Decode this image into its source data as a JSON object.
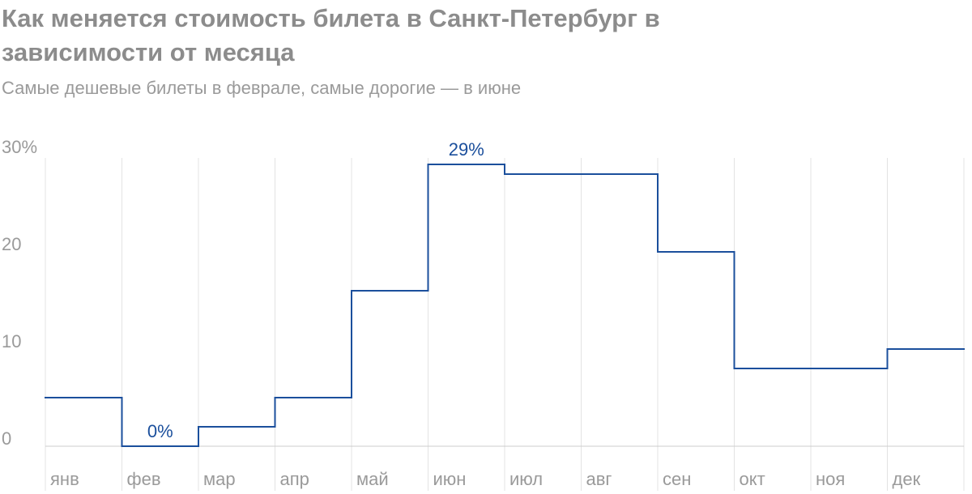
{
  "chart_data": {
    "type": "step",
    "title": "Как меняется стоимость билета в Санкт-Петербург в зависимости от месяца",
    "subtitle": "Самые дешевые билеты в феврале, самые дорогие — в июне",
    "categories": [
      "янв",
      "фев",
      "мар",
      "апр",
      "май",
      "июн",
      "июл",
      "авг",
      "сен",
      "окт",
      "ноя",
      "дек"
    ],
    "values": [
      5,
      0,
      2,
      5,
      16,
      29,
      28,
      28,
      20,
      8,
      8,
      10
    ],
    "value_labels": [
      null,
      "0%",
      null,
      null,
      null,
      "29%",
      null,
      null,
      null,
      null,
      null,
      null
    ],
    "color": "#1b4f9c",
    "ylim": [
      0,
      30
    ],
    "yticks": [
      0,
      10,
      20,
      {
        "value": 30,
        "label": "30%"
      }
    ]
  }
}
